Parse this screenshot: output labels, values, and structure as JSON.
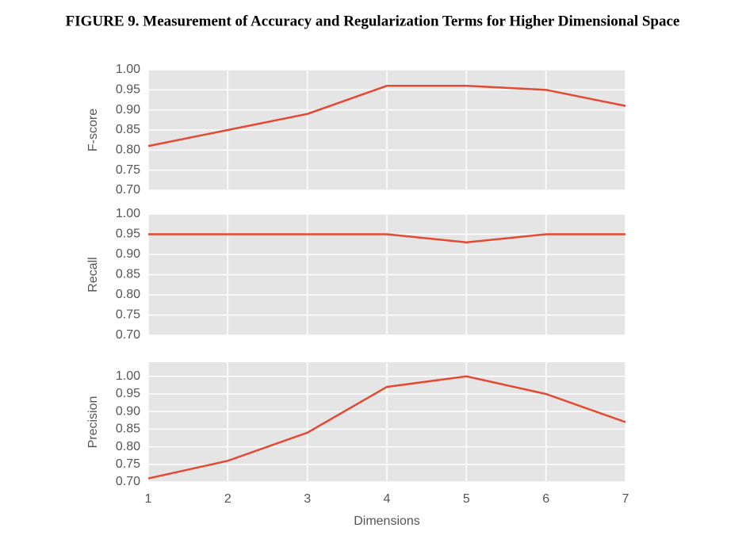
{
  "title": "FIGURE 9. Measurement of Accuracy and Regularization Terms for Higher Dimensional Space",
  "chart_data": [
    {
      "type": "line",
      "ylabel": "F-score",
      "x": [
        1,
        2,
        3,
        4,
        5,
        6,
        7
      ],
      "values": [
        0.81,
        0.85,
        0.89,
        0.96,
        0.96,
        0.95,
        0.91
      ],
      "color": "#e24a33",
      "xlim": [
        1,
        7
      ],
      "xticks": [
        1,
        2,
        3,
        4,
        5,
        6,
        7
      ],
      "ylim": [
        0.7,
        1.0
      ],
      "yticks": [
        {
          "value": 0.7,
          "label": "0.70"
        },
        {
          "value": 0.75,
          "label": "0.75"
        },
        {
          "value": 0.8,
          "label": "0.80"
        },
        {
          "value": 0.85,
          "label": "0.85"
        },
        {
          "value": 0.9,
          "label": "0.90"
        },
        {
          "value": 0.95,
          "label": "0.95"
        },
        {
          "value": 1.0,
          "label": "1.00"
        }
      ],
      "grid": true
    },
    {
      "type": "line",
      "ylabel": "Recall",
      "x": [
        1,
        2,
        3,
        4,
        5,
        6,
        7
      ],
      "values": [
        0.95,
        0.95,
        0.95,
        0.95,
        0.93,
        0.95,
        0.95
      ],
      "color": "#e24a33",
      "xlim": [
        1,
        7
      ],
      "xticks": [
        1,
        2,
        3,
        4,
        5,
        6,
        7
      ],
      "ylim": [
        0.7,
        1.0
      ],
      "yticks": [
        {
          "value": 0.7,
          "label": "0.70"
        },
        {
          "value": 0.75,
          "label": "0.75"
        },
        {
          "value": 0.8,
          "label": "0.80"
        },
        {
          "value": 0.85,
          "label": "0.85"
        },
        {
          "value": 0.9,
          "label": "0.90"
        },
        {
          "value": 0.95,
          "label": "0.95"
        },
        {
          "value": 1.0,
          "label": "1.00"
        }
      ],
      "grid": true
    },
    {
      "type": "line",
      "ylabel": "Precision",
      "xlabel": "Dimensions",
      "x": [
        1,
        2,
        3,
        4,
        5,
        6,
        7
      ],
      "values": [
        0.71,
        0.76,
        0.84,
        0.97,
        1.0,
        0.95,
        0.87
      ],
      "color": "#e24a33",
      "xlim": [
        1,
        7
      ],
      "xticks": [
        1,
        2,
        3,
        4,
        5,
        6,
        7
      ],
      "xtick_labels": true,
      "ylim": [
        0.7,
        1.04
      ],
      "yticks": [
        {
          "value": 0.7,
          "label": "0.70"
        },
        {
          "value": 0.75,
          "label": "0.75"
        },
        {
          "value": 0.8,
          "label": "0.80"
        },
        {
          "value": 0.85,
          "label": "0.85"
        },
        {
          "value": 0.9,
          "label": "0.90"
        },
        {
          "value": 0.95,
          "label": "0.95"
        },
        {
          "value": 1.0,
          "label": "1.00"
        }
      ],
      "grid": true
    }
  ]
}
